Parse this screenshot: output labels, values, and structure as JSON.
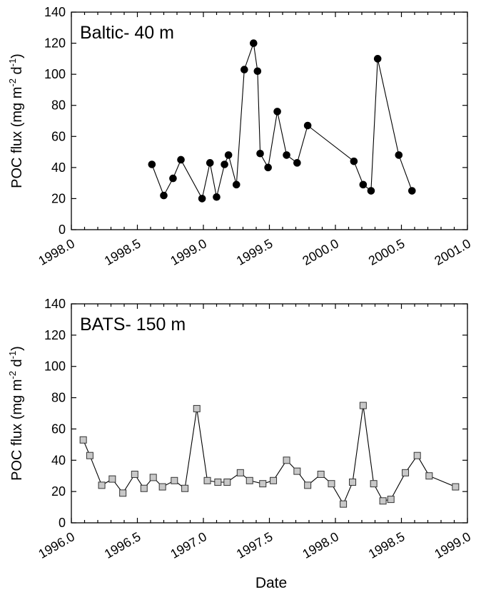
{
  "xlabel_shared": "Date",
  "chart_data": [
    {
      "type": "line",
      "title": "Baltic- 40 m",
      "ylabel": "POC flux",
      "ylabel_unit_parts": {
        "open": " (mg m",
        "exp1": "-2",
        "mid": " d",
        "exp2": "-1",
        "close": ")"
      },
      "xlim": [
        1998.0,
        2001.0
      ],
      "ylim": [
        0,
        140
      ],
      "xticks": [
        "1998.0",
        "1998.5",
        "1999.0",
        "1999.5",
        "2000.0",
        "2000.5",
        "2001.0"
      ],
      "xtick_values": [
        1998.0,
        1998.5,
        1999.0,
        1999.5,
        2000.0,
        2000.5,
        2001.0
      ],
      "yticks": [
        "0",
        "20",
        "40",
        "60",
        "80",
        "100",
        "120",
        "140"
      ],
      "ytick_values": [
        0,
        20,
        40,
        60,
        80,
        100,
        120,
        140
      ],
      "marker": "circle",
      "marker_color": "#000000",
      "series": [
        {
          "x": [
            1998.61,
            1998.7,
            1998.77,
            1998.83,
            1998.99,
            1999.05,
            1999.1,
            1999.16,
            1999.19,
            1999.25,
            1999.31,
            1999.38,
            1999.41,
            1999.43,
            1999.49,
            1999.56,
            1999.63,
            1999.71,
            1999.79,
            2000.14,
            2000.21,
            2000.27,
            2000.32,
            2000.48,
            2000.58
          ],
          "y": [
            42,
            22,
            33,
            45,
            20,
            43,
            21,
            42,
            48,
            29,
            103,
            120,
            102,
            49,
            40,
            76,
            48,
            43,
            67,
            44,
            29,
            25,
            110,
            48,
            25
          ]
        }
      ]
    },
    {
      "type": "line",
      "title": "BATS- 150 m",
      "ylabel": "POC flux",
      "ylabel_unit_parts": {
        "open": " (mg m",
        "exp1": "-2",
        "mid": " d",
        "exp2": "-1",
        "close": ")"
      },
      "xlabel": "Date",
      "xlim": [
        1996.0,
        1999.0
      ],
      "ylim": [
        0,
        140
      ],
      "xticks": [
        "1996.0",
        "1996.5",
        "1997.0",
        "1997.5",
        "1998.0",
        "1998.5",
        "1999.0"
      ],
      "xtick_values": [
        1996.0,
        1996.5,
        1997.0,
        1997.5,
        1998.0,
        1998.5,
        1999.0
      ],
      "yticks": [
        "0",
        "20",
        "40",
        "60",
        "80",
        "100",
        "120",
        "140"
      ],
      "ytick_values": [
        0,
        20,
        40,
        60,
        80,
        100,
        120,
        140
      ],
      "marker": "square",
      "marker_color": "#c8c8c8",
      "series": [
        {
          "x": [
            1996.09,
            1996.14,
            1996.23,
            1996.31,
            1996.39,
            1996.48,
            1996.55,
            1996.62,
            1996.69,
            1996.78,
            1996.86,
            1996.95,
            1997.03,
            1997.11,
            1997.18,
            1997.28,
            1997.35,
            1997.45,
            1997.53,
            1997.63,
            1997.71,
            1997.79,
            1997.89,
            1997.97,
            1998.06,
            1998.13,
            1998.21,
            1998.29,
            1998.36,
            1998.42,
            1998.53,
            1998.62,
            1998.71,
            1998.91
          ],
          "y": [
            53,
            43,
            24,
            28,
            19,
            31,
            22,
            29,
            23,
            27,
            22,
            73,
            27,
            26,
            26,
            32,
            27,
            25,
            27,
            40,
            33,
            24,
            31,
            25,
            12,
            26,
            75,
            25,
            14,
            15,
            32,
            43,
            30,
            23
          ]
        }
      ]
    }
  ]
}
